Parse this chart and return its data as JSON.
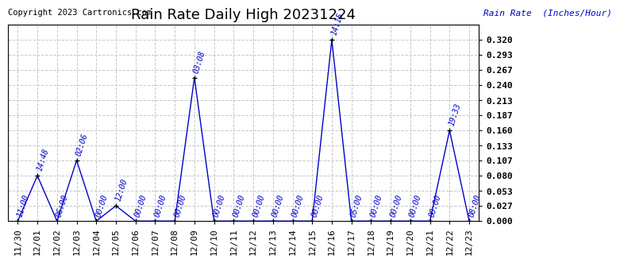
{
  "title": "Rain Rate Daily High 20231224",
  "copyright": "Copyright 2023 Cartronics.com",
  "ylabel": "Rain Rate  (Inches/Hour)",
  "background_color": "#ffffff",
  "plot_background": "#ffffff",
  "line_color": "#0000cc",
  "text_color": "#0000cc",
  "title_color": "#000000",
  "x_labels": [
    "11/30",
    "12/01",
    "12/02",
    "12/03",
    "12/04",
    "12/05",
    "12/06",
    "12/07",
    "12/08",
    "12/09",
    "12/10",
    "12/11",
    "12/12",
    "12/13",
    "12/14",
    "12/15",
    "12/16",
    "12/17",
    "12/18",
    "12/19",
    "12/20",
    "12/21",
    "12/22",
    "12/23"
  ],
  "x_indices": [
    0,
    1,
    2,
    3,
    4,
    5,
    6,
    7,
    8,
    9,
    10,
    11,
    12,
    13,
    14,
    15,
    16,
    17,
    18,
    19,
    20,
    21,
    22,
    23
  ],
  "y_values": [
    0.0,
    0.08,
    0.0,
    0.107,
    0.0,
    0.027,
    0.0,
    0.0,
    0.0,
    0.253,
    0.0,
    0.0,
    0.0,
    0.0,
    0.0,
    0.0,
    0.32,
    0.0,
    0.0,
    0.0,
    0.0,
    0.0,
    0.16,
    0.0
  ],
  "point_labels": [
    "11:00",
    "14:48",
    "06:00",
    "02:06",
    "00:00",
    "12:00",
    "00:00",
    "00:00",
    "00:00",
    "03:08",
    "00:00",
    "00:00",
    "00:00",
    "00:00",
    "00:00",
    "00:00",
    "14:15",
    "05:00",
    "00:00",
    "00:00",
    "00:00",
    "00:00",
    "19:33",
    "08:00"
  ],
  "yticks": [
    0.0,
    0.027,
    0.053,
    0.08,
    0.107,
    0.133,
    0.16,
    0.187,
    0.213,
    0.24,
    0.267,
    0.293,
    0.32
  ],
  "ylim": [
    0.0,
    0.347
  ],
  "title_fontsize": 13,
  "label_fontsize": 8,
  "annot_fontsize": 7,
  "tick_fontsize": 8,
  "copyright_fontsize": 7.5,
  "grid_color": "#c8c8c8",
  "grid_style": "--"
}
